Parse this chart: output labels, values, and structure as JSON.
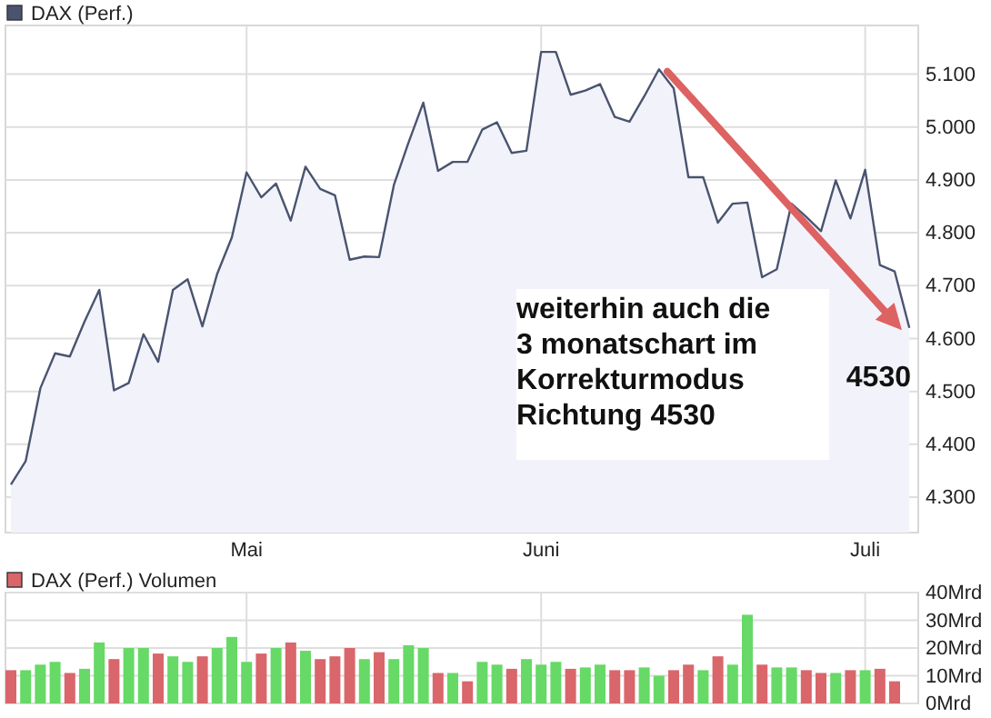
{
  "chart_data": [
    {
      "type": "area",
      "categories": [
        null,
        null,
        null,
        null,
        null,
        null,
        null,
        null,
        null,
        null,
        null,
        null,
        null,
        null,
        null,
        null,
        "Mai",
        null,
        null,
        null,
        null,
        null,
        null,
        null,
        null,
        null,
        null,
        null,
        null,
        null,
        null,
        null,
        null,
        null,
        null,
        null,
        "Juni",
        null,
        null,
        null,
        null,
        null,
        null,
        null,
        null,
        null,
        null,
        null,
        null,
        null,
        null,
        null,
        null,
        null,
        null,
        null,
        null,
        null,
        "Juli",
        null,
        null,
        null
      ],
      "series": [
        {
          "name": "DAX (Perf.)",
          "color": "#4a5470",
          "values": [
            4324,
            4368,
            4506,
            4572,
            4566,
            4632,
            4692,
            4502,
            4516,
            4608,
            4556,
            4692,
            4712,
            4623,
            4722,
            4791,
            4914,
            4867,
            4893,
            4823,
            4925,
            4883,
            4871,
            4749,
            4755,
            4754,
            4890,
            4971,
            5046,
            4917,
            4934,
            4934,
            4995,
            5009,
            4951,
            4955,
            5142,
            5142,
            5061,
            5069,
            5081,
            5019,
            5010,
            5058,
            5109,
            5073,
            4905,
            4905,
            4819,
            4855,
            4857,
            4716,
            4731,
            4855,
            4830,
            4803,
            4899,
            4827,
            4919,
            4739,
            4727,
            4620
          ]
        }
      ],
      "ylim": [
        4233,
        5192
      ],
      "yticks": [
        {
          "value": 4300,
          "label": "4.300"
        },
        {
          "value": 4400,
          "label": "4.400"
        },
        {
          "value": 4500,
          "label": "4.500"
        },
        {
          "value": 4600,
          "label": "4.600"
        },
        {
          "value": 4700,
          "label": "4.700"
        },
        {
          "value": 4800,
          "label": "4.800"
        },
        {
          "value": 4900,
          "label": "4.900"
        },
        {
          "value": 5000,
          "label": "5.000"
        },
        {
          "value": 5100,
          "label": "5.100"
        }
      ],
      "grid": true,
      "legend": "top left",
      "annotations": [
        "weiterhin auch die\n3 monatschart im\nKorrekturmodus\nRichtung 4530",
        "4530"
      ]
    },
    {
      "type": "bar",
      "categories": [
        null,
        null,
        null,
        null,
        null,
        null,
        null,
        null,
        null,
        null,
        null,
        null,
        null,
        null,
        null,
        null,
        null,
        null,
        null,
        null,
        null,
        null,
        null,
        null,
        null,
        null,
        null,
        null,
        null,
        null,
        null,
        null,
        null,
        null,
        null,
        null,
        null,
        null,
        null,
        null,
        null,
        null,
        null,
        null,
        null,
        null,
        null,
        null,
        null,
        null,
        null,
        null,
        null,
        null,
        null,
        null,
        null,
        null,
        null,
        null,
        null
      ],
      "series": [
        {
          "name": "DAX (Perf.) Volumen",
          "color": "#d9666a",
          "values": [
            12,
            12,
            14,
            15,
            11,
            12.5,
            22,
            16,
            20,
            20,
            18,
            17,
            15,
            17,
            20,
            24,
            15,
            18,
            20,
            22,
            19,
            16,
            17,
            20,
            16,
            18.5,
            16,
            21,
            20,
            11,
            11,
            8,
            15,
            14,
            12.5,
            16,
            14,
            15,
            12.5,
            13,
            14,
            12,
            12,
            13,
            10,
            12,
            14,
            12,
            17,
            14,
            32,
            14,
            13,
            13,
            12,
            11,
            11,
            12,
            12,
            12.5,
            8
          ],
          "colors": [
            "#d9666a",
            "#66d966",
            "#66d966",
            "#66d966",
            "#d9666a",
            "#66d966",
            "#66d966",
            "#d9666a",
            "#66d966",
            "#66d966",
            "#d9666a",
            "#66d966",
            "#66d966",
            "#d9666a",
            "#66d966",
            "#66d966",
            "#66d966",
            "#d9666a",
            "#66d966",
            "#d9666a",
            "#66d966",
            "#d9666a",
            "#d9666a",
            "#d9666a",
            "#66d966",
            "#d9666a",
            "#66d966",
            "#66d966",
            "#66d966",
            "#d9666a",
            "#66d966",
            "#d9666a",
            "#66d966",
            "#66d966",
            "#d9666a",
            "#66d966",
            "#66d966",
            "#66d966",
            "#d9666a",
            "#66d966",
            "#66d966",
            "#d9666a",
            "#d9666a",
            "#66d966",
            "#66d966",
            "#d9666a",
            "#d9666a",
            "#66d966",
            "#d9666a",
            "#66d966",
            "#66d966",
            "#d9666a",
            "#66d966",
            "#66d966",
            "#d9666a",
            "#d9666a",
            "#66d966",
            "#d9666a",
            "#66d966",
            "#d9666a",
            "#d9666a"
          ]
        }
      ],
      "ylim": [
        0,
        40
      ],
      "yticks": [
        {
          "value": 0,
          "label": "0Mrd"
        },
        {
          "value": 10,
          "label": "10Mrd"
        },
        {
          "value": 20,
          "label": "20Mrd"
        },
        {
          "value": 30,
          "label": "30Mrd"
        },
        {
          "value": 40,
          "label": "40Mrd"
        }
      ],
      "grid": true,
      "legend": "top left",
      "tick_labels": "y"
    }
  ]
}
